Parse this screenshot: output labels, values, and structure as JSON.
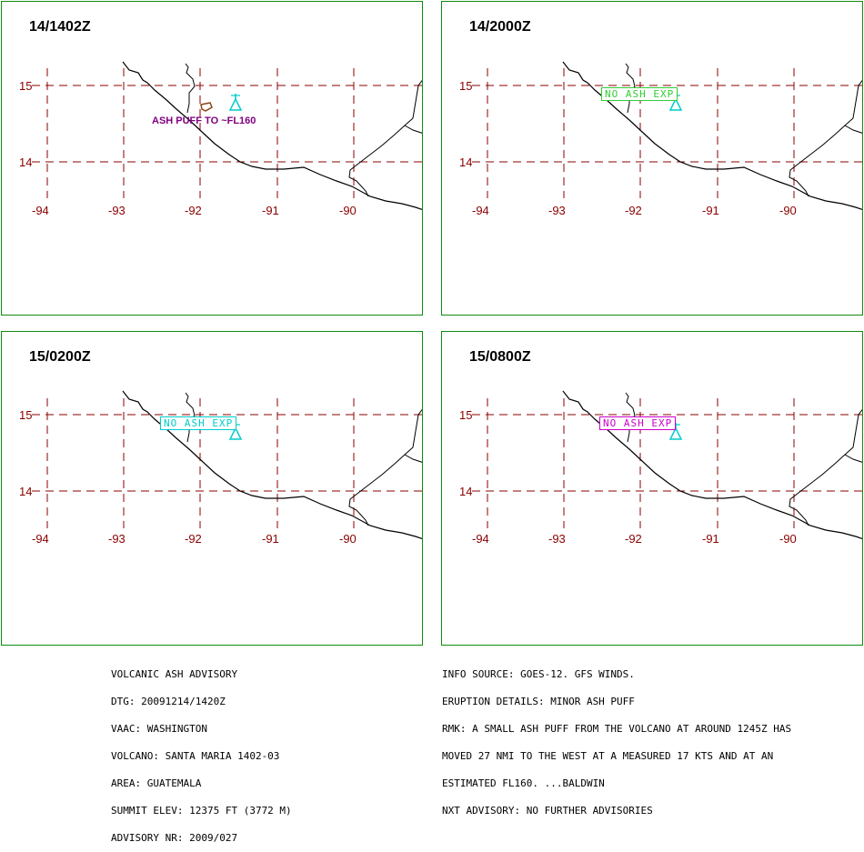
{
  "panels": [
    {
      "title": "14/1402Z",
      "annotation": {
        "type": "ash",
        "text": "ASH PUFF TO ~FL160",
        "color": "#800080"
      },
      "volcano_color": "#00cccc"
    },
    {
      "title": "14/2000Z",
      "annotation": {
        "type": "box",
        "text": "NO ASH EXP",
        "color": "#33cc33"
      },
      "volcano_color": "#00cccc"
    },
    {
      "title": "15/0200Z",
      "annotation": {
        "type": "box",
        "text": "NO ASH EXP",
        "color": "#00cccc"
      },
      "volcano_color": "#00cccc"
    },
    {
      "title": "15/0800Z",
      "annotation": {
        "type": "box",
        "text": "NO ASH EXP",
        "color": "#cc00cc"
      },
      "volcano_color": "#00cccc"
    }
  ],
  "grid": {
    "lat_labels": [
      "15",
      "14"
    ],
    "lon_labels": [
      "-94",
      "-93",
      "-92",
      "-91",
      "-90"
    ],
    "grid_color": "#8b0000"
  },
  "colors": {
    "panel_border": "#0f8c0f",
    "coastline": "#000000",
    "ash_polygon": "#8b4513"
  },
  "advisory_left": [
    "VOLCANIC ASH ADVISORY",
    "DTG: 20091214/1420Z",
    "VAAC: WASHINGTON",
    "VOLCANO: SANTA MARIA 1402-03",
    "AREA: GUATEMALA",
    "SUMMIT ELEV: 12375 FT (3772 M)",
    "ADVISORY NR: 2009/027"
  ],
  "advisory_right": [
    "INFO SOURCE: GOES-12. GFS WINDS.",
    "ERUPTION DETAILS: MINOR ASH PUFF",
    "RMK: A SMALL ASH PUFF FROM THE VOLCANO AT AROUND 1245Z HAS",
    "MOVED 27 NMI TO THE WEST AT A MEASURED 17 KTS AND AT AN",
    "ESTIMATED FL160. ...BALDWIN",
    "NXT ADVISORY: NO FURTHER ADVISORIES"
  ]
}
